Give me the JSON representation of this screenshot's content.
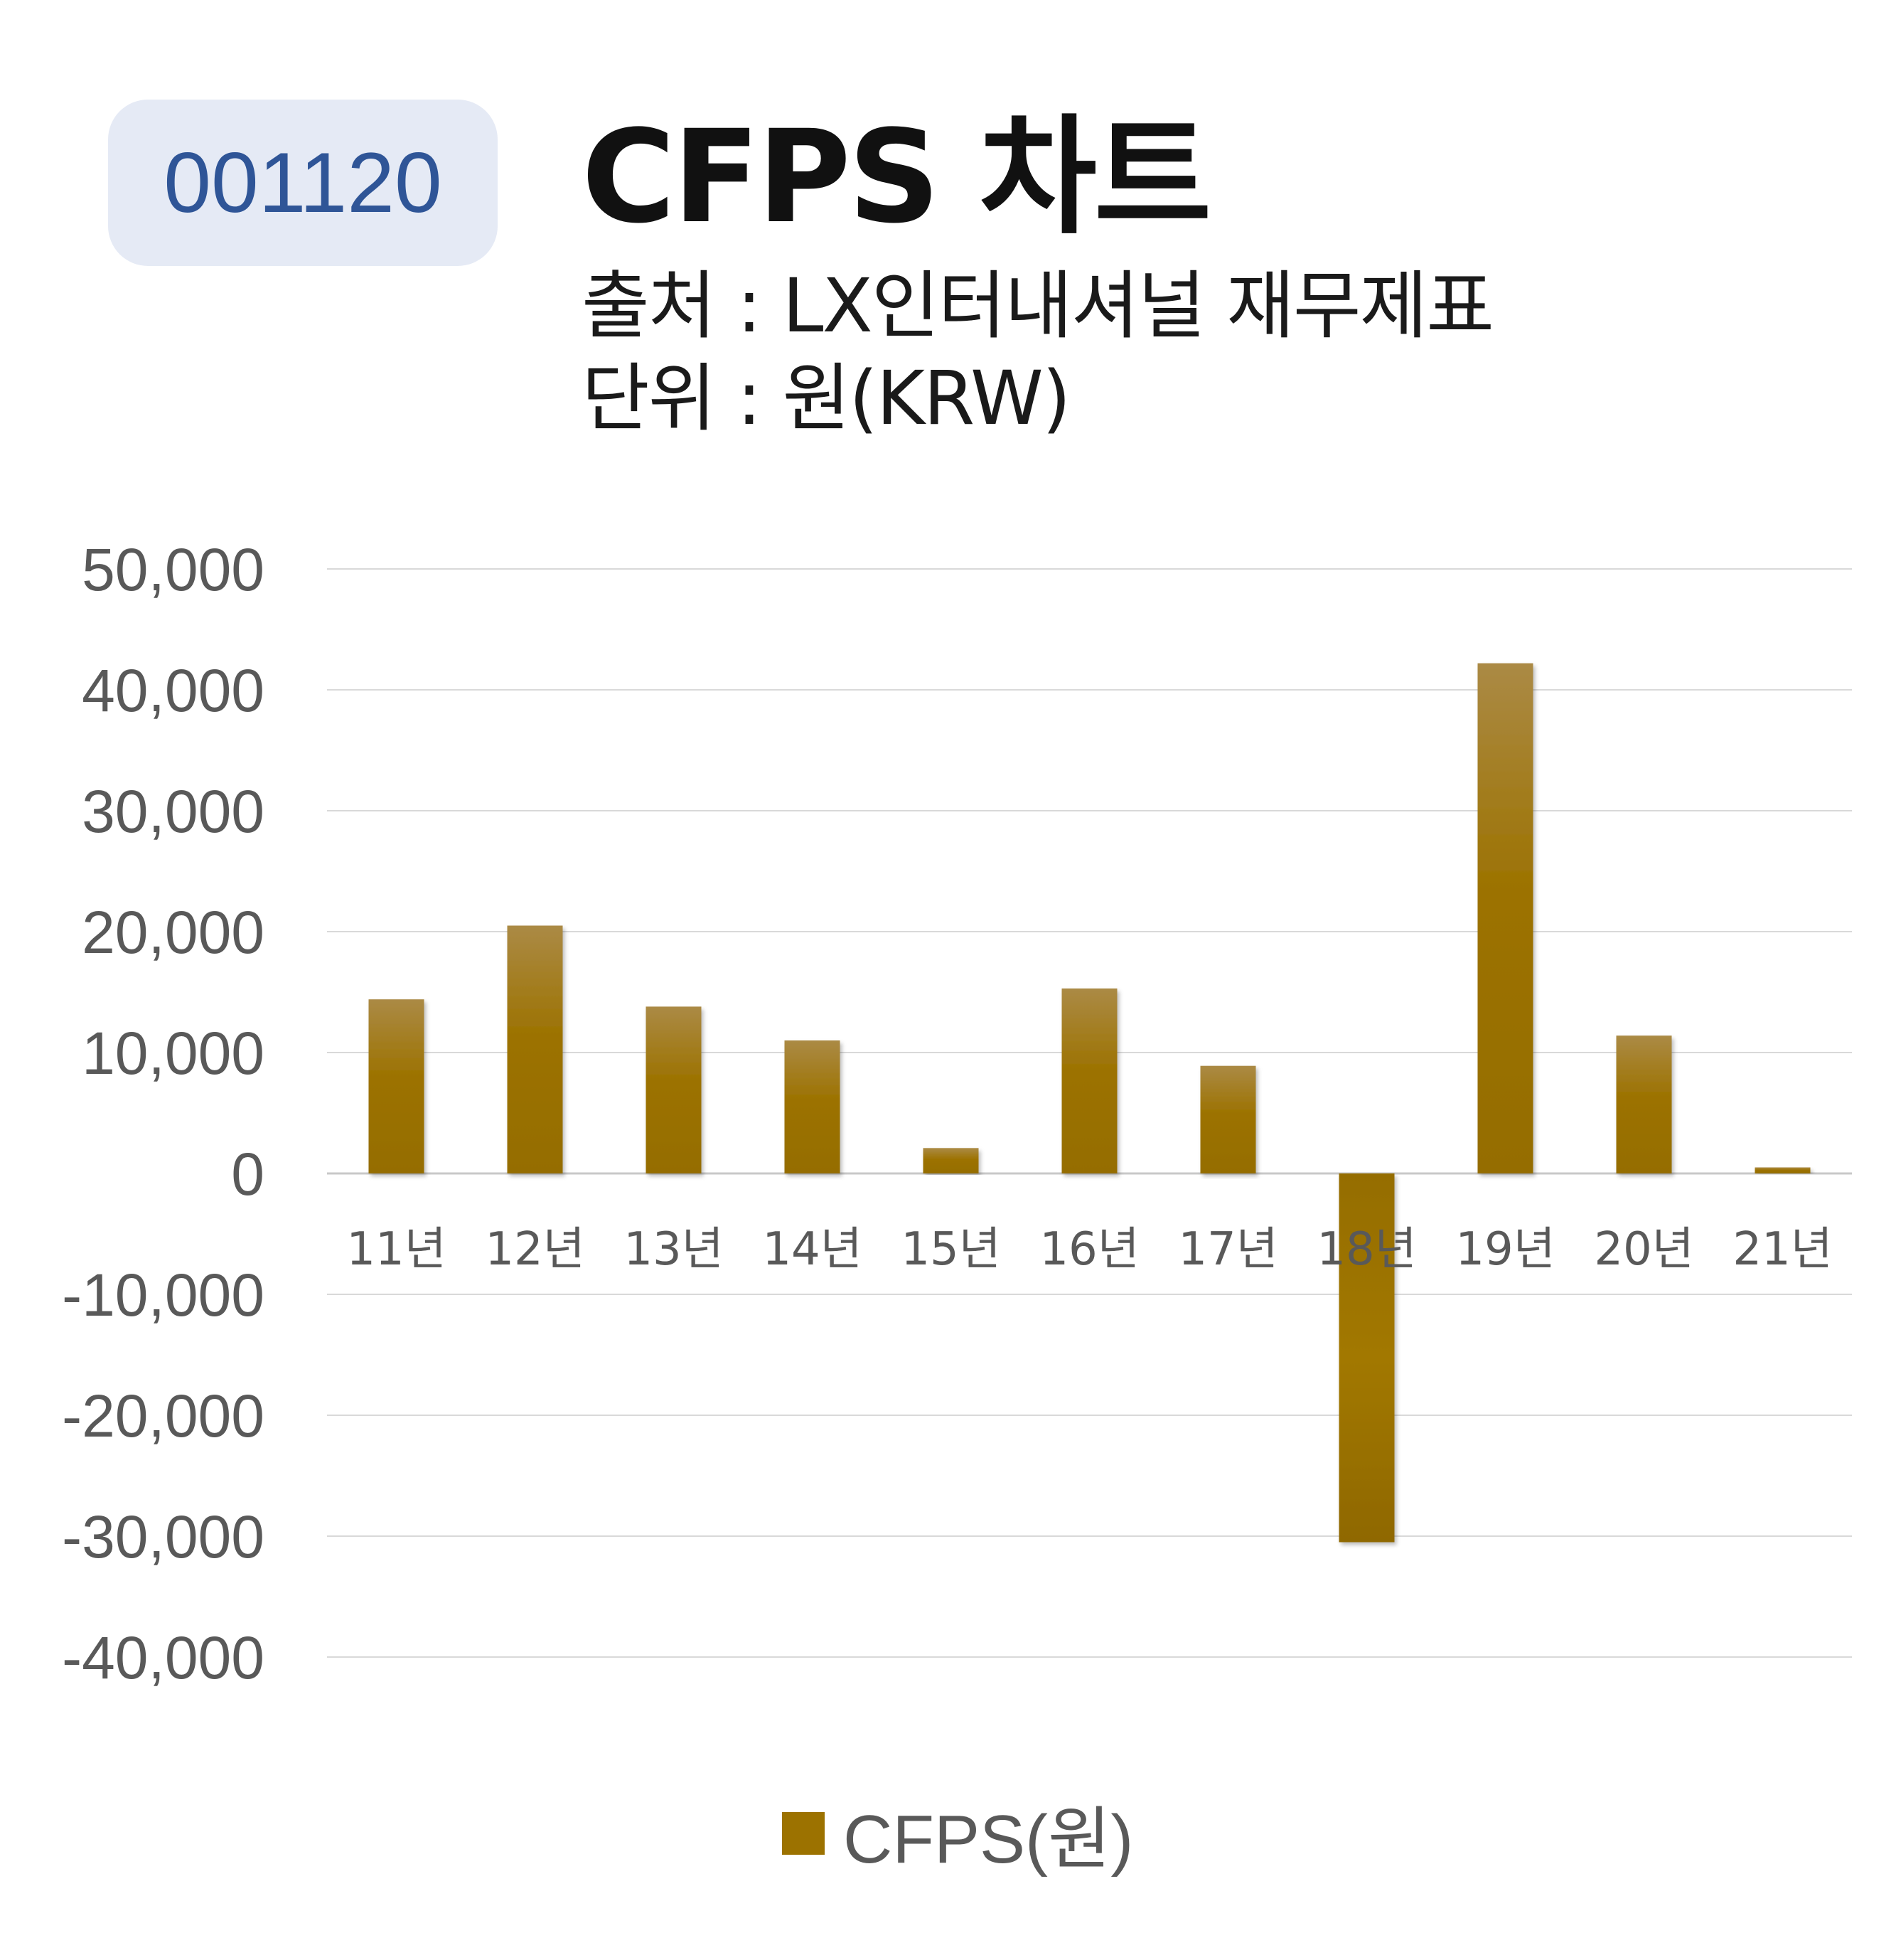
{
  "header": {
    "code": "001120",
    "title": "CFPS 차트",
    "source": "출처 : LX인터내셔널 재무제표",
    "unit": "단위 : 원(KRW)"
  },
  "colors": {
    "bar": "#9c7200",
    "bar_top": "#ab8a45",
    "badge_bg": "#e5eaf5",
    "badge_text": "#2f5597",
    "grid": "#d9d9d9",
    "tick_text": "#595959"
  },
  "chart_data": {
    "type": "bar",
    "categories": [
      "11년",
      "12년",
      "13년",
      "14년",
      "15년",
      "16년",
      "17년",
      "18년",
      "19년",
      "20년",
      "21년"
    ],
    "series": [
      {
        "name": "CFPS(원)",
        "values": [
          14400,
          20500,
          13800,
          11000,
          2100,
          15300,
          8900,
          -30500,
          42200,
          11400,
          500
        ]
      }
    ],
    "ylim": [
      -40000,
      50000
    ],
    "yticks": [
      50000,
      40000,
      30000,
      20000,
      10000,
      0,
      -10000,
      -20000,
      -30000,
      -40000
    ],
    "ytick_labels": [
      "50,000",
      "40,000",
      "30,000",
      "20,000",
      "10,000",
      "0",
      "-10,000",
      "-20,000",
      "-30,000",
      "-40,000"
    ],
    "grid": true,
    "legend": "bottom"
  }
}
